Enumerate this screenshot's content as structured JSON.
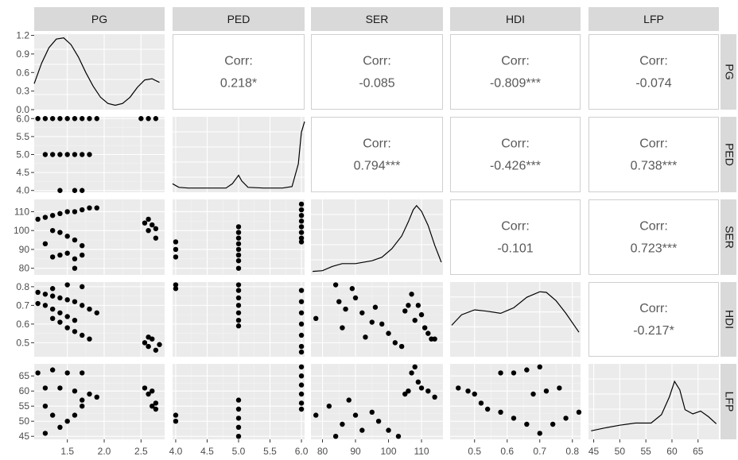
{
  "chart_data": {
    "type": "scatter",
    "variables": [
      "PG",
      "PED",
      "SER",
      "HDI",
      "LFP"
    ],
    "ranges": {
      "PG": [
        1.05,
        2.82
      ],
      "PED": [
        3.95,
        6.05
      ],
      "SER": [
        76.5,
        116.5
      ],
      "HDI": [
        0.425,
        0.825
      ],
      "LFP": [
        44.0,
        69.0
      ]
    },
    "ticks": {
      "PG": {
        "values": [
          1.5,
          2.0,
          2.5
        ],
        "labels": [
          "1.5",
          "2.0",
          "2.5"
        ]
      },
      "PED": {
        "values": [
          4.0,
          4.5,
          5.0,
          5.5,
          6.0
        ],
        "labels": [
          "4.0",
          "4.5",
          "5.0",
          "5.5",
          "6.0"
        ]
      },
      "SER": {
        "values": [
          80,
          90,
          100,
          110
        ],
        "labels": [
          "80",
          "90",
          "100",
          "110"
        ]
      },
      "HDI": {
        "values": [
          0.5,
          0.6,
          0.7,
          0.8
        ],
        "labels": [
          "0.5",
          "0.6",
          "0.7",
          "0.8"
        ]
      },
      "LFP": {
        "values": [
          45,
          50,
          55,
          60,
          65
        ],
        "labels": [
          "45",
          "50",
          "55",
          "60",
          "65"
        ]
      }
    },
    "y_ticks": {
      "PG": {
        "values": [
          0.0,
          0.3,
          0.6,
          0.9,
          1.2
        ],
        "labels": [
          "0.0",
          "0.3",
          "0.6",
          "0.9",
          "1.2"
        ]
      },
      "PED": {
        "values": [
          4.0,
          4.5,
          5.0,
          5.5,
          6.0
        ],
        "labels": [
          "4.0",
          "4.5",
          "5.0",
          "5.5",
          "6.0"
        ]
      },
      "SER": {
        "values": [
          80,
          90,
          100,
          110
        ],
        "labels": [
          "80",
          "90",
          "100",
          "110"
        ]
      },
      "HDI": {
        "values": [
          0.5,
          0.6,
          0.7,
          0.8
        ],
        "labels": [
          "0.5",
          "0.6",
          "0.7",
          "0.8"
        ]
      },
      "LFP": {
        "values": [
          45,
          50,
          55,
          60,
          65
        ],
        "labels": [
          "45",
          "50",
          "55",
          "60",
          "65"
        ]
      }
    },
    "pg_density_range": [
      0.0,
      1.22
    ],
    "densities": {
      "PG": [
        [
          1.05,
          0.42
        ],
        [
          1.15,
          0.75
        ],
        [
          1.25,
          1.0
        ],
        [
          1.35,
          1.14
        ],
        [
          1.45,
          1.16
        ],
        [
          1.55,
          1.05
        ],
        [
          1.65,
          0.85
        ],
        [
          1.75,
          0.6
        ],
        [
          1.85,
          0.38
        ],
        [
          1.95,
          0.2
        ],
        [
          2.05,
          0.1
        ],
        [
          2.15,
          0.07
        ],
        [
          2.25,
          0.1
        ],
        [
          2.35,
          0.2
        ],
        [
          2.45,
          0.36
        ],
        [
          2.55,
          0.48
        ],
        [
          2.65,
          0.5
        ],
        [
          2.75,
          0.44
        ]
      ],
      "PED": [
        [
          3.95,
          0.12
        ],
        [
          4.05,
          0.07
        ],
        [
          4.2,
          0.06
        ],
        [
          4.5,
          0.06
        ],
        [
          4.8,
          0.06
        ],
        [
          4.9,
          0.12
        ],
        [
          5.0,
          0.24
        ],
        [
          5.05,
          0.16
        ],
        [
          5.15,
          0.07
        ],
        [
          5.4,
          0.06
        ],
        [
          5.7,
          0.06
        ],
        [
          5.85,
          0.08
        ],
        [
          5.95,
          0.4
        ],
        [
          6.0,
          0.85
        ],
        [
          6.05,
          1.0
        ]
      ],
      "SER": [
        [
          77,
          0.05
        ],
        [
          80,
          0.06
        ],
        [
          83,
          0.12
        ],
        [
          86,
          0.16
        ],
        [
          90,
          0.16
        ],
        [
          95,
          0.2
        ],
        [
          98,
          0.25
        ],
        [
          101,
          0.37
        ],
        [
          104,
          0.55
        ],
        [
          106,
          0.75
        ],
        [
          107.5,
          0.92
        ],
        [
          108.5,
          0.98
        ],
        [
          110,
          0.9
        ],
        [
          112,
          0.7
        ],
        [
          114,
          0.42
        ],
        [
          116,
          0.18
        ]
      ],
      "HDI": [
        [
          0.43,
          0.45
        ],
        [
          0.46,
          0.6
        ],
        [
          0.5,
          0.67
        ],
        [
          0.54,
          0.65
        ],
        [
          0.58,
          0.62
        ],
        [
          0.62,
          0.7
        ],
        [
          0.66,
          0.85
        ],
        [
          0.7,
          0.93
        ],
        [
          0.72,
          0.92
        ],
        [
          0.75,
          0.8
        ],
        [
          0.78,
          0.62
        ],
        [
          0.82,
          0.35
        ]
      ],
      "LFP": [
        [
          44.5,
          0.12
        ],
        [
          47,
          0.16
        ],
        [
          50,
          0.2
        ],
        [
          53,
          0.23
        ],
        [
          56,
          0.23
        ],
        [
          58,
          0.35
        ],
        [
          59.5,
          0.6
        ],
        [
          60.5,
          0.82
        ],
        [
          61.5,
          0.7
        ],
        [
          62.5,
          0.42
        ],
        [
          64,
          0.36
        ],
        [
          65.5,
          0.4
        ],
        [
          67,
          0.32
        ],
        [
          68.5,
          0.22
        ]
      ]
    },
    "correlations": [
      {
        "row": "PG",
        "col": "PED",
        "label": "Corr:",
        "value": "0.218*"
      },
      {
        "row": "PG",
        "col": "SER",
        "label": "Corr:",
        "value": "-0.085"
      },
      {
        "row": "PG",
        "col": "HDI",
        "label": "Corr:",
        "value": "-0.809***"
      },
      {
        "row": "PG",
        "col": "LFP",
        "label": "Corr:",
        "value": "-0.074"
      },
      {
        "row": "PED",
        "col": "SER",
        "label": "Corr:",
        "value": "0.794***"
      },
      {
        "row": "PED",
        "col": "HDI",
        "label": "Corr:",
        "value": "-0.426***"
      },
      {
        "row": "PED",
        "col": "LFP",
        "label": "Corr:",
        "value": "0.738***"
      },
      {
        "row": "SER",
        "col": "HDI",
        "label": "Corr:",
        "value": "-0.101"
      },
      {
        "row": "SER",
        "col": "LFP",
        "label": "Corr:",
        "value": "0.723***"
      },
      {
        "row": "HDI",
        "col": "LFP",
        "label": "Corr:",
        "value": "-0.217*"
      }
    ],
    "scatter": {
      "PED_PG": [
        [
          1.1,
          6
        ],
        [
          1.2,
          6
        ],
        [
          1.3,
          6
        ],
        [
          1.4,
          6
        ],
        [
          1.5,
          6
        ],
        [
          1.6,
          6
        ],
        [
          1.7,
          6
        ],
        [
          1.8,
          6
        ],
        [
          1.9,
          6
        ],
        [
          2.5,
          6
        ],
        [
          2.6,
          6
        ],
        [
          2.7,
          6
        ],
        [
          1.2,
          5
        ],
        [
          1.3,
          5
        ],
        [
          1.4,
          5
        ],
        [
          1.5,
          5
        ],
        [
          1.6,
          5
        ],
        [
          1.7,
          5
        ],
        [
          1.8,
          5
        ],
        [
          1.4,
          4
        ],
        [
          1.6,
          4
        ],
        [
          1.7,
          4
        ]
      ],
      "SER_PG": [
        [
          1.1,
          106
        ],
        [
          1.2,
          107
        ],
        [
          1.3,
          108
        ],
        [
          1.4,
          109
        ],
        [
          1.5,
          110
        ],
        [
          1.6,
          110
        ],
        [
          1.7,
          111
        ],
        [
          1.8,
          112
        ],
        [
          1.9,
          112
        ],
        [
          1.3,
          100
        ],
        [
          1.4,
          99
        ],
        [
          1.5,
          97
        ],
        [
          1.6,
          95
        ],
        [
          1.7,
          92
        ],
        [
          1.3,
          86
        ],
        [
          1.4,
          87
        ],
        [
          1.5,
          88
        ],
        [
          1.6,
          85
        ],
        [
          1.7,
          87
        ],
        [
          1.2,
          93
        ],
        [
          1.6,
          80
        ],
        [
          2.55,
          104
        ],
        [
          2.6,
          106
        ],
        [
          2.65,
          103
        ],
        [
          2.7,
          101
        ],
        [
          2.6,
          100
        ],
        [
          2.7,
          96
        ]
      ],
      "SER_PED": [
        [
          4,
          94
        ],
        [
          4,
          90
        ],
        [
          4,
          86
        ],
        [
          5,
          102
        ],
        [
          5,
          99
        ],
        [
          5,
          96
        ],
        [
          5,
          93
        ],
        [
          5,
          90
        ],
        [
          5,
          87
        ],
        [
          5,
          84
        ],
        [
          5,
          80
        ],
        [
          6,
          114
        ],
        [
          6,
          111
        ],
        [
          6,
          108
        ],
        [
          6,
          105
        ],
        [
          6,
          102
        ],
        [
          6,
          99
        ],
        [
          6,
          96
        ],
        [
          6,
          94
        ]
      ],
      "HDI_PG": [
        [
          1.1,
          0.77
        ],
        [
          1.2,
          0.76
        ],
        [
          1.3,
          0.75
        ],
        [
          1.4,
          0.74
        ],
        [
          1.5,
          0.73
        ],
        [
          1.6,
          0.72
        ],
        [
          1.7,
          0.7
        ],
        [
          1.8,
          0.68
        ],
        [
          1.9,
          0.66
        ],
        [
          1.1,
          0.71
        ],
        [
          1.2,
          0.7
        ],
        [
          1.3,
          0.68
        ],
        [
          1.4,
          0.66
        ],
        [
          1.5,
          0.64
        ],
        [
          1.6,
          0.62
        ],
        [
          1.3,
          0.63
        ],
        [
          1.4,
          0.61
        ],
        [
          1.5,
          0.58
        ],
        [
          1.6,
          0.56
        ],
        [
          1.7,
          0.54
        ],
        [
          1.8,
          0.52
        ],
        [
          1.5,
          0.81
        ],
        [
          1.7,
          0.8
        ],
        [
          1.3,
          0.79
        ],
        [
          2.55,
          0.5
        ],
        [
          2.6,
          0.48
        ],
        [
          2.65,
          0.52
        ],
        [
          2.7,
          0.46
        ],
        [
          2.6,
          0.53
        ],
        [
          2.75,
          0.49
        ]
      ],
      "HDI_PED": [
        [
          4,
          0.81
        ],
        [
          4,
          0.79
        ],
        [
          5,
          0.78
        ],
        [
          5,
          0.74
        ],
        [
          5,
          0.7
        ],
        [
          5,
          0.66
        ],
        [
          5,
          0.62
        ],
        [
          5,
          0.59
        ],
        [
          5,
          0.81
        ],
        [
          6,
          0.78
        ],
        [
          6,
          0.72
        ],
        [
          6,
          0.66
        ],
        [
          6,
          0.6
        ],
        [
          6,
          0.54
        ],
        [
          6,
          0.48
        ],
        [
          6,
          0.45
        ]
      ],
      "HDI_SER": [
        [
          78,
          0.63
        ],
        [
          84,
          0.81
        ],
        [
          85,
          0.72
        ],
        [
          86,
          0.58
        ],
        [
          87,
          0.68
        ],
        [
          89,
          0.79
        ],
        [
          90,
          0.74
        ],
        [
          92,
          0.66
        ],
        [
          93,
          0.53
        ],
        [
          95,
          0.61
        ],
        [
          96,
          0.69
        ],
        [
          98,
          0.6
        ],
        [
          100,
          0.55
        ],
        [
          102,
          0.5
        ],
        [
          104,
          0.48
        ],
        [
          105,
          0.67
        ],
        [
          106,
          0.7
        ],
        [
          107,
          0.76
        ],
        [
          108,
          0.62
        ],
        [
          109,
          0.7
        ],
        [
          110,
          0.65
        ],
        [
          111,
          0.58
        ],
        [
          112,
          0.55
        ],
        [
          113,
          0.52
        ],
        [
          114,
          0.52
        ]
      ],
      "LFP_PG": [
        [
          1.1,
          66
        ],
        [
          1.3,
          67
        ],
        [
          1.5,
          66
        ],
        [
          1.7,
          66
        ],
        [
          1.2,
          61
        ],
        [
          1.4,
          61
        ],
        [
          1.6,
          60
        ],
        [
          1.8,
          59
        ],
        [
          1.9,
          58
        ],
        [
          1.2,
          55
        ],
        [
          1.3,
          52
        ],
        [
          1.4,
          48
        ],
        [
          1.2,
          46
        ],
        [
          1.5,
          50
        ],
        [
          1.6,
          52
        ],
        [
          1.7,
          55
        ],
        [
          1.7,
          57
        ],
        [
          2.55,
          61
        ],
        [
          2.65,
          60
        ],
        [
          2.6,
          59
        ],
        [
          2.7,
          56
        ],
        [
          2.65,
          55
        ],
        [
          2.7,
          54
        ]
      ],
      "LFP_PED": [
        [
          4,
          52
        ],
        [
          4,
          50
        ],
        [
          5,
          57
        ],
        [
          5,
          54
        ],
        [
          5,
          51
        ],
        [
          5,
          48
        ],
        [
          5,
          45
        ],
        [
          6,
          68
        ],
        [
          6,
          65
        ],
        [
          6,
          62
        ],
        [
          6,
          59
        ],
        [
          6,
          56
        ],
        [
          6,
          54
        ]
      ],
      "LFP_SER": [
        [
          78,
          52
        ],
        [
          82,
          55
        ],
        [
          84,
          45
        ],
        [
          86,
          49
        ],
        [
          88,
          57
        ],
        [
          90,
          52
        ],
        [
          92,
          47
        ],
        [
          95,
          53
        ],
        [
          97,
          50
        ],
        [
          100,
          47
        ],
        [
          103,
          45
        ],
        [
          105,
          59
        ],
        [
          107,
          66
        ],
        [
          108,
          68
        ],
        [
          110,
          61
        ],
        [
          112,
          60
        ],
        [
          114,
          58
        ],
        [
          106,
          60
        ],
        [
          109,
          63
        ]
      ],
      "LFP_HDI": [
        [
          0.45,
          61
        ],
        [
          0.48,
          60
        ],
        [
          0.5,
          59
        ],
        [
          0.52,
          56
        ],
        [
          0.54,
          54
        ],
        [
          0.58,
          66
        ],
        [
          0.62,
          66
        ],
        [
          0.66,
          67
        ],
        [
          0.7,
          68
        ],
        [
          0.58,
          53
        ],
        [
          0.62,
          51
        ],
        [
          0.66,
          49
        ],
        [
          0.7,
          46
        ],
        [
          0.74,
          49
        ],
        [
          0.78,
          51
        ],
        [
          0.82,
          53
        ],
        [
          0.68,
          59
        ],
        [
          0.72,
          60
        ],
        [
          0.76,
          61
        ]
      ]
    }
  }
}
